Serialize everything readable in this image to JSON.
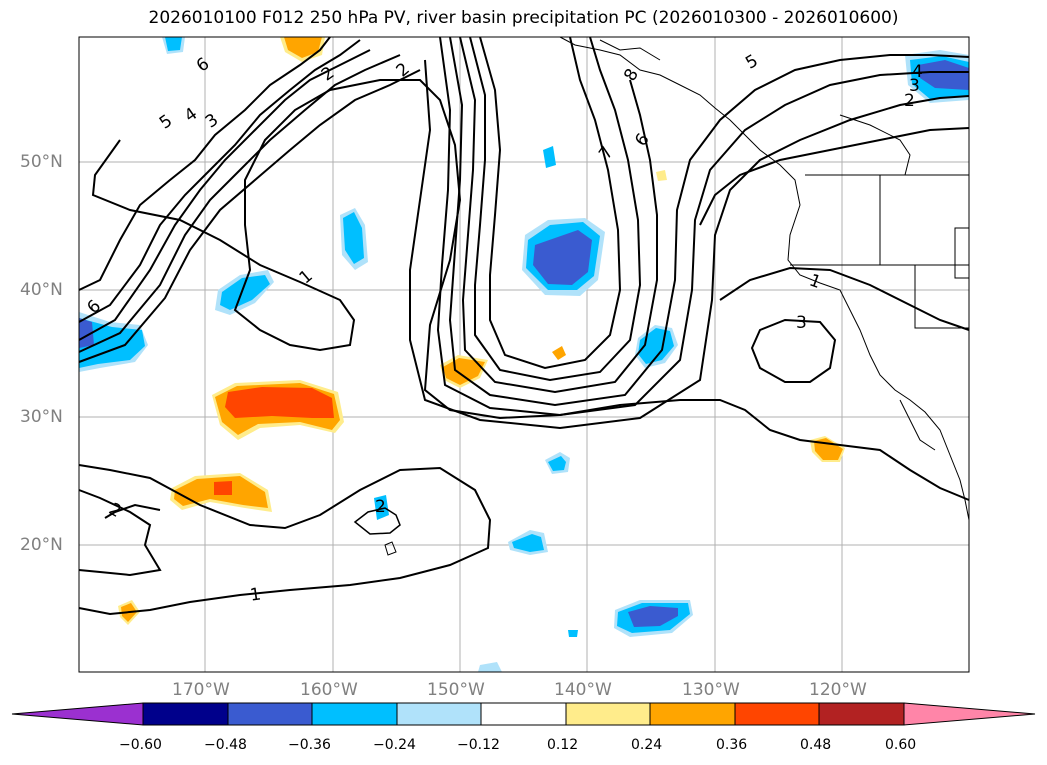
{
  "title": "2026010100 F012 250 hPa PV, river basin precipitation PC (2026010300 - 2026010600)",
  "lat_labels": [
    "50°N",
    "40°N",
    "30°N",
    "20°N"
  ],
  "lon_labels": [
    "170°W",
    "160°W",
    "150°W",
    "140°W",
    "130°W",
    "120°W"
  ],
  "contour_labels": [
    "6",
    "5",
    "4",
    "3",
    "2",
    "1",
    "2",
    "8",
    "7",
    "6",
    "5",
    "4",
    "3",
    "2",
    "1",
    "3",
    "6",
    "2",
    "1",
    "2"
  ],
  "colorbar": {
    "ticks": [
      "−0.60",
      "−0.48",
      "−0.36",
      "−0.24",
      "−0.12",
      "0.12",
      "0.24",
      "0.36",
      "0.48",
      "0.60"
    ],
    "colors": {
      "under": "#9b30d0",
      "c1": "#00008b",
      "c2": "#3a5bd0",
      "c3": "#00bfff",
      "c4": "#b0e2fa",
      "c5": "#ffffff",
      "c6": "#ffec8b",
      "c7": "#ffa500",
      "c8": "#ff4500",
      "c9": "#b22222",
      "over": "#ff85a8"
    }
  }
}
